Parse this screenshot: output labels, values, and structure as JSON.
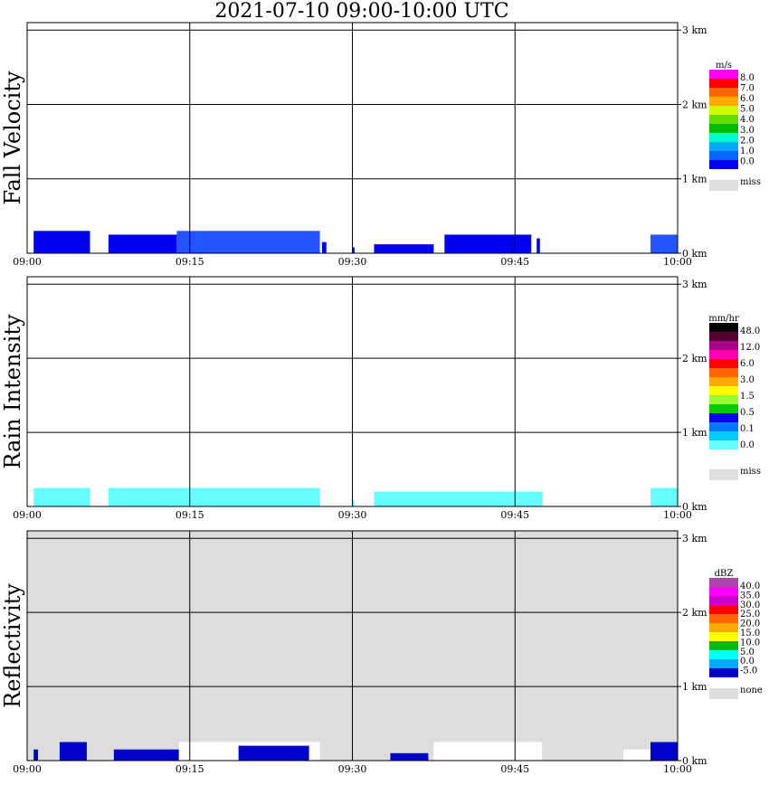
{
  "title": "2021-07-10   09:00-10:00 UTC",
  "x_ticks": [
    "09:00",
    "09:15",
    "09:30",
    "09:45",
    "10:00"
  ],
  "y_ticks": [
    "0 km",
    "1 km",
    "2 km",
    "3 km"
  ],
  "chart_data": [
    {
      "type": "heatmap",
      "ylabel": "Fall Velocity",
      "xlim": [
        "09:00",
        "10:00"
      ],
      "ylim_km": [
        0,
        3.1
      ],
      "grid": true,
      "background": "#ffffff",
      "legend": {
        "unit": "m/s",
        "labels": [
          "8.0",
          "7.0",
          "6.0",
          "5.0",
          "4.0",
          "3.0",
          "2.0",
          "1.0",
          "0.0"
        ],
        "colors": [
          "#ff00ff",
          "#ff0000",
          "#ff6600",
          "#ffaa00",
          "#ccff00",
          "#66dd00",
          "#00bb00",
          "#00ffcc",
          "#00aaff",
          "#0066ff",
          "#0000ee"
        ],
        "miss_label": "miss",
        "miss_color": "#dddddd"
      },
      "echoes": [
        {
          "x0": "09:00.6",
          "x1": "09:05.8",
          "top_km": 0.3,
          "color": "#0000ee"
        },
        {
          "x0": "09:07.5",
          "x1": "09:13.8",
          "top_km": 0.25,
          "color": "#0000ee"
        },
        {
          "x0": "09:13.8",
          "x1": "09:27.0",
          "top_km": 0.3,
          "color": "#2255ff"
        },
        {
          "x0": "09:27.2",
          "x1": "09:27.6",
          "top_km": 0.15,
          "color": "#0000ee"
        },
        {
          "x0": "09:30.0",
          "x1": "09:30.2",
          "top_km": 0.08,
          "color": "#0000ee"
        },
        {
          "x0": "09:32.0",
          "x1": "09:37.5",
          "top_km": 0.12,
          "color": "#0000ee"
        },
        {
          "x0": "09:38.5",
          "x1": "09:46.5",
          "top_km": 0.25,
          "color": "#0000ee"
        },
        {
          "x0": "09:47.0",
          "x1": "09:47.3",
          "top_km": 0.2,
          "color": "#0000ee"
        },
        {
          "x0": "09:57.5",
          "x1": "10:00.0",
          "top_km": 0.25,
          "color": "#2255ff"
        }
      ]
    },
    {
      "type": "heatmap",
      "ylabel": "Rain Intensity",
      "xlim": [
        "09:00",
        "10:00"
      ],
      "ylim_km": [
        0,
        3.1
      ],
      "grid": true,
      "background": "#ffffff",
      "legend": {
        "unit": "mm/hr",
        "labels": [
          "48.0",
          "12.0",
          "6.0",
          "3.0",
          "1.5",
          "0.5",
          "0.1",
          "0.0"
        ],
        "colors": [
          "#000000",
          "#550033",
          "#aa0088",
          "#ff00aa",
          "#ff0000",
          "#ff6600",
          "#ffaa00",
          "#ffff00",
          "#99ff33",
          "#00cc00",
          "#0000ee",
          "#0077ff",
          "#00ccff",
          "#66ffff",
          "#ffffff"
        ],
        "miss_label": "miss",
        "miss_color": "#dddddd"
      },
      "echoes": [
        {
          "x0": "09:00.6",
          "x1": "09:05.8",
          "top_km": 0.25,
          "color": "#66ffff"
        },
        {
          "x0": "09:07.5",
          "x1": "09:27.0",
          "top_km": 0.25,
          "color": "#66ffff"
        },
        {
          "x0": "09:30.0",
          "x1": "09:30.2",
          "top_km": 0.08,
          "color": "#66ffff"
        },
        {
          "x0": "09:32.0",
          "x1": "09:47.5",
          "top_km": 0.2,
          "color": "#66ffff"
        },
        {
          "x0": "09:57.5",
          "x1": "10:00.0",
          "top_km": 0.25,
          "color": "#66ffff"
        }
      ]
    },
    {
      "type": "heatmap",
      "ylabel": "Reflectivity",
      "xlim": [
        "09:00",
        "10:00"
      ],
      "ylim_km": [
        0,
        3.1
      ],
      "grid": true,
      "background": "#dddddd",
      "legend": {
        "unit": "dBZ",
        "labels": [
          "40.0",
          "35.0",
          "30.0",
          "25.0",
          "20.0",
          "15.0",
          "10.0",
          "5.0",
          "0.0",
          "-5.0"
        ],
        "colors": [
          "#aa44aa",
          "#ff00ff",
          "#cc00cc",
          "#ff0000",
          "#ff6600",
          "#ffaa00",
          "#ffff00",
          "#00bb00",
          "#00ffff",
          "#00aaff",
          "#0000cc"
        ],
        "miss_label": "none",
        "miss_color": "#dddddd"
      },
      "echoes": [
        {
          "x0": "09:00.6",
          "x1": "09:01.0",
          "top_km": 0.15,
          "color": "#0000cc"
        },
        {
          "x0": "09:03.0",
          "x1": "09:05.5",
          "top_km": 0.25,
          "color": "#0000cc"
        },
        {
          "x0": "09:08.0",
          "x1": "09:14.0",
          "top_km": 0.15,
          "color": "#0000cc"
        },
        {
          "x0": "09:14.0",
          "x1": "09:27.0",
          "top_km": 0.25,
          "color": "#ffffff"
        },
        {
          "x0": "09:19.5",
          "x1": "09:26.0",
          "top_km": 0.2,
          "color": "#0000cc"
        },
        {
          "x0": "09:33.5",
          "x1": "09:37.0",
          "top_km": 0.1,
          "color": "#0000cc"
        },
        {
          "x0": "09:39.5",
          "x1": "09:44.0",
          "top_km": 0.2,
          "color": "#0000cc"
        },
        {
          "x0": "09:37.5",
          "x1": "09:47.5",
          "top_km": 0.25,
          "color": "#ffffff"
        },
        {
          "x0": "09:55.0",
          "x1": "09:57.5",
          "top_km": 0.15,
          "color": "#ffffff"
        },
        {
          "x0": "09:57.5",
          "x1": "10:00.0",
          "top_km": 0.25,
          "color": "#0000cc"
        }
      ]
    }
  ]
}
